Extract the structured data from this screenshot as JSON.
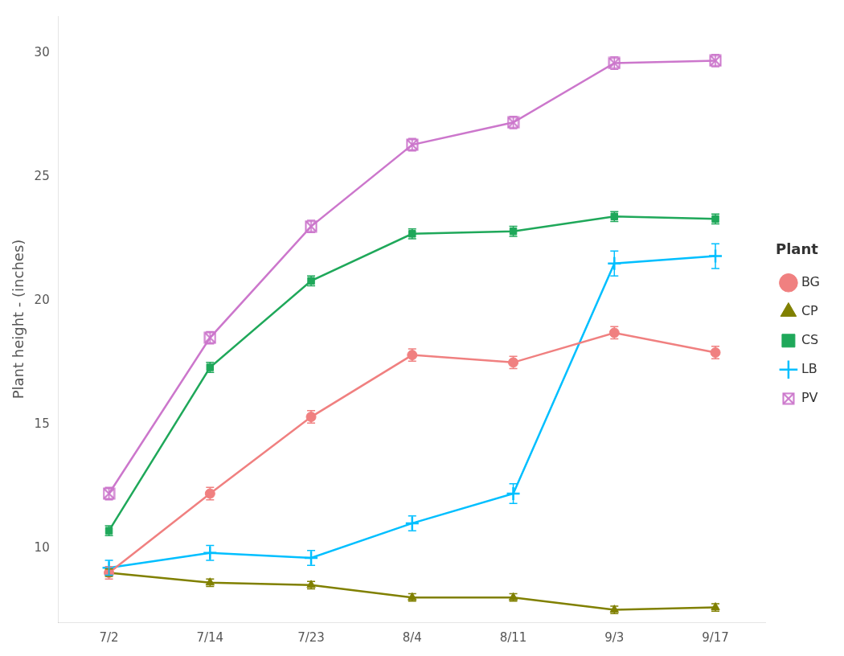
{
  "chart_data": {
    "type": "line",
    "categories": [
      "7/2",
      "7/14",
      "7/23",
      "8/4",
      "8/11",
      "9/3",
      "9/17"
    ],
    "series": [
      {
        "name": "BG",
        "color": "#F08080",
        "marker": "circle",
        "values": [
          9.0,
          12.2,
          15.3,
          17.8,
          17.5,
          18.7,
          17.9
        ],
        "yerr": [
          0.25,
          0.25,
          0.25,
          0.25,
          0.25,
          0.25,
          0.25
        ]
      },
      {
        "name": "CP",
        "color": "#808000",
        "marker": "triangle",
        "values": [
          9.0,
          8.6,
          8.5,
          8.0,
          8.0,
          7.5,
          7.6
        ],
        "yerr": [
          0.15,
          0.15,
          0.15,
          0.15,
          0.15,
          0.15,
          0.15
        ]
      },
      {
        "name": "CS",
        "color": "#1FA85A",
        "marker": "square",
        "values": [
          10.7,
          17.3,
          20.8,
          22.7,
          22.8,
          23.4,
          23.3
        ],
        "yerr": [
          0.2,
          0.2,
          0.2,
          0.2,
          0.2,
          0.2,
          0.2
        ]
      },
      {
        "name": "LB",
        "color": "#00BFFF",
        "marker": "plus",
        "values": [
          9.2,
          9.8,
          9.6,
          11.0,
          12.2,
          21.5,
          21.8
        ],
        "yerr": [
          0.3,
          0.3,
          0.3,
          0.3,
          0.4,
          0.5,
          0.5
        ]
      },
      {
        "name": "PV",
        "color": "#CC77CC",
        "marker": "square_x",
        "values": [
          12.2,
          18.5,
          23.0,
          26.3,
          27.2,
          29.6,
          29.7
        ],
        "yerr": [
          0.25,
          0.25,
          0.25,
          0.25,
          0.25,
          0.25,
          0.25
        ]
      }
    ],
    "ylabel": "Plant height - (inches)",
    "legend_title": "Plant",
    "legend": "right",
    "ylim": [
      7.0,
      31.5
    ],
    "yticks": [
      10,
      15,
      20,
      25,
      30
    ],
    "grid": false
  }
}
